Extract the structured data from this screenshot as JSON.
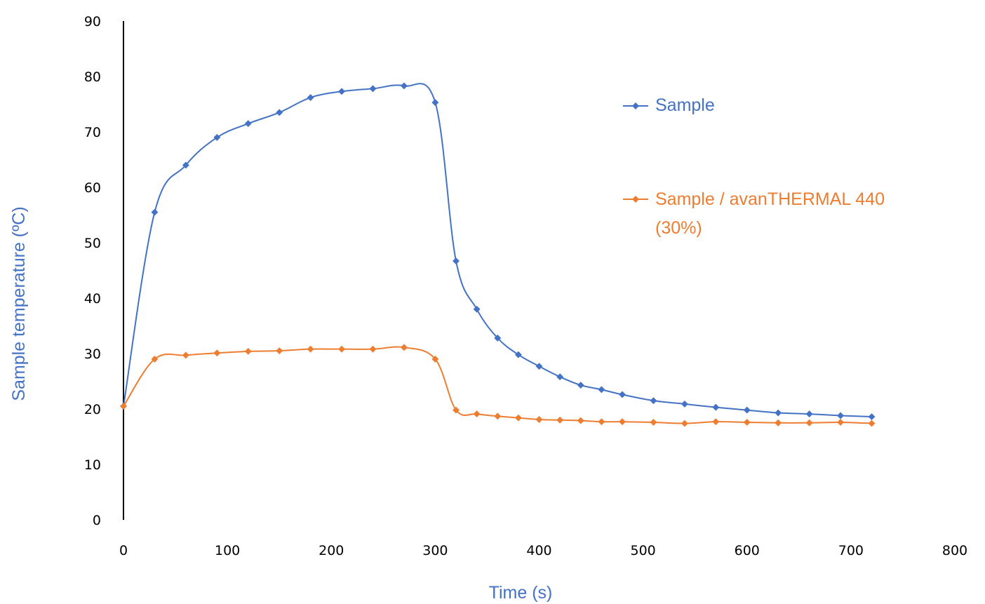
{
  "chart_data": {
    "type": "line",
    "title": "",
    "xlabel": "Time (s)",
    "ylabel": "Sample temperature (ºC)",
    "xlim": [
      0,
      800
    ],
    "ylim": [
      0,
      90
    ],
    "x_ticks": [
      "0",
      "100",
      "200",
      "300",
      "400",
      "500",
      "600",
      "700",
      "800"
    ],
    "y_ticks": [
      "0",
      "10",
      "20",
      "30",
      "40",
      "50",
      "60",
      "70",
      "80",
      "90"
    ],
    "grid": false,
    "legend_position": "right",
    "series": [
      {
        "name": "Sample",
        "color": "#4472C4",
        "marker": "diamond",
        "points": [
          [
            0,
            20.5
          ],
          [
            30,
            55.5
          ],
          [
            60,
            64
          ],
          [
            90,
            69
          ],
          [
            120,
            71.5
          ],
          [
            150,
            73.5
          ],
          [
            180,
            76.2
          ],
          [
            210,
            77.3
          ],
          [
            240,
            77.8
          ],
          [
            270,
            78.3
          ],
          [
            300,
            75.3
          ],
          [
            320,
            46.7
          ],
          [
            340,
            38
          ],
          [
            360,
            32.8
          ],
          [
            380,
            29.8
          ],
          [
            400,
            27.7
          ],
          [
            420,
            25.8
          ],
          [
            440,
            24.3
          ],
          [
            460,
            23.5
          ],
          [
            480,
            22.6
          ],
          [
            510,
            21.5
          ],
          [
            540,
            20.9
          ],
          [
            570,
            20.3
          ],
          [
            600,
            19.8
          ],
          [
            630,
            19.3
          ],
          [
            660,
            19.1
          ],
          [
            690,
            18.8
          ],
          [
            720,
            18.6
          ]
        ]
      },
      {
        "name": "Sample / avanTHERMAL 440 (30%)",
        "color": "#ED7D31",
        "marker": "diamond",
        "points": [
          [
            0,
            20.5
          ],
          [
            30,
            29
          ],
          [
            60,
            29.7
          ],
          [
            90,
            30.1
          ],
          [
            120,
            30.4
          ],
          [
            150,
            30.5
          ],
          [
            180,
            30.8
          ],
          [
            210,
            30.8
          ],
          [
            240,
            30.8
          ],
          [
            270,
            31.1
          ],
          [
            300,
            29
          ],
          [
            320,
            19.8
          ],
          [
            340,
            19.1
          ],
          [
            360,
            18.7
          ],
          [
            380,
            18.4
          ],
          [
            400,
            18.1
          ],
          [
            420,
            18
          ],
          [
            440,
            17.9
          ],
          [
            460,
            17.7
          ],
          [
            480,
            17.7
          ],
          [
            510,
            17.6
          ],
          [
            540,
            17.4
          ],
          [
            570,
            17.7
          ],
          [
            600,
            17.6
          ],
          [
            630,
            17.5
          ],
          [
            660,
            17.5
          ],
          [
            690,
            17.6
          ],
          [
            720,
            17.4
          ]
        ]
      }
    ],
    "legend": [
      {
        "label_line1": "Sample",
        "label_line2": ""
      },
      {
        "label_line1": "Sample / avanTHERMAL 440",
        "label_line2": "(30%)"
      }
    ]
  }
}
